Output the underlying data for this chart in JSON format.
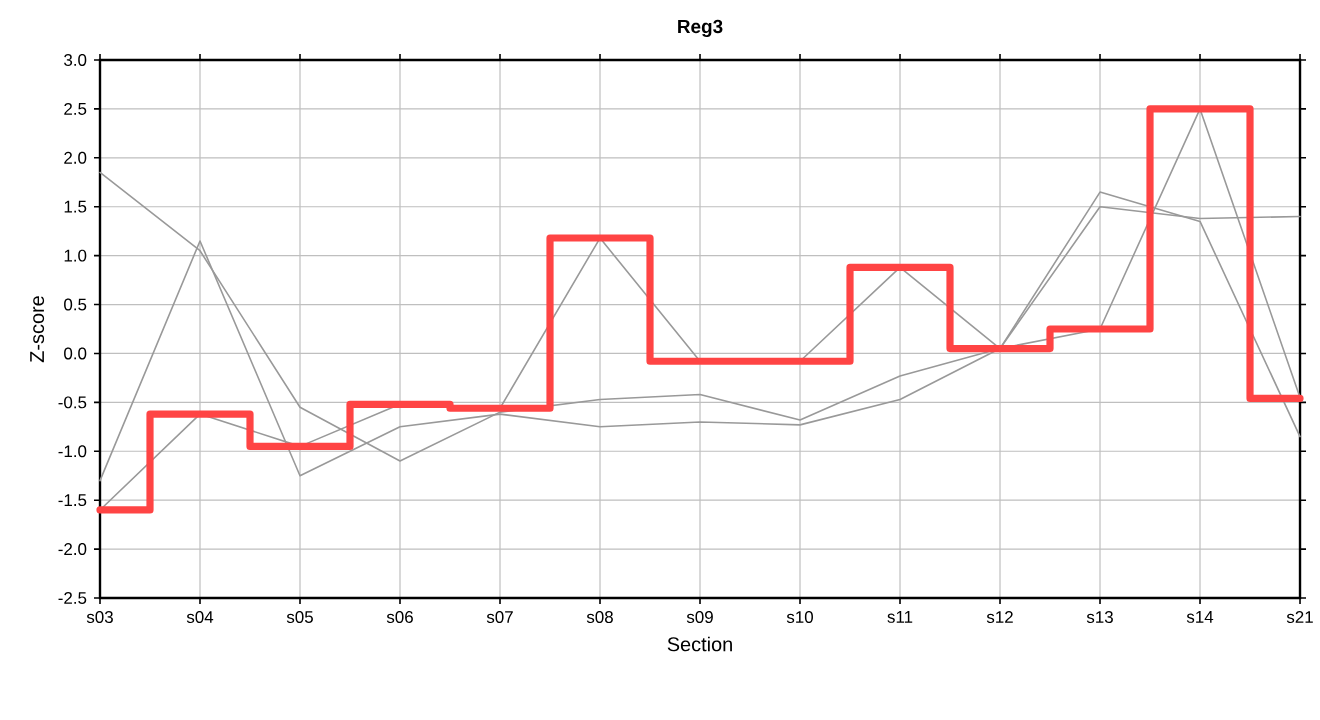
{
  "chart_data": {
    "type": "line",
    "title": "Reg3",
    "xlabel": "Section",
    "ylabel": "Z-score",
    "categories": [
      "s03",
      "s04",
      "s05",
      "s06",
      "s07",
      "s08",
      "s09",
      "s10",
      "s11",
      "s12",
      "s13",
      "s14",
      "s21"
    ],
    "ylim": [
      -2.5,
      3.0
    ],
    "yticks": [
      {
        "value": -2.5,
        "label": "-2.5"
      },
      {
        "value": -2,
        "label": "-2.0"
      },
      {
        "value": -1.5,
        "label": "-1.5"
      },
      {
        "value": -1,
        "label": "-1.0"
      },
      {
        "value": -0.5,
        "label": "-0.5"
      },
      {
        "value": 0,
        "label": "0.0"
      },
      {
        "value": 0.5,
        "label": "0.5"
      },
      {
        "value": 1,
        "label": "1.0"
      },
      {
        "value": 1.5,
        "label": "1.5"
      },
      {
        "value": 2,
        "label": "2.0"
      },
      {
        "value": 2.5,
        "label": "2.5"
      },
      {
        "value": 3,
        "label": "3.0"
      }
    ],
    "grid": true,
    "marker": "none",
    "line_style": "solid",
    "series": [
      {
        "color": "#999999",
        "values": [
          1.85,
          1.05,
          -0.55,
          -1.1,
          -0.6,
          -0.47,
          -0.42,
          -0.68,
          -0.23,
          0.05,
          1.65,
          1.35,
          -0.85
        ]
      },
      {
        "color": "#999999",
        "values": [
          -1.3,
          1.15,
          -1.25,
          -0.75,
          -0.62,
          -0.75,
          -0.7,
          -0.73,
          -0.47,
          0.05,
          1.5,
          1.38,
          1.4
        ]
      },
      {
        "color": "#999999",
        "values": [
          -1.6,
          -0.62,
          -0.95,
          -0.52,
          -0.56,
          1.18,
          -0.08,
          -0.08,
          0.88,
          0.05,
          0.25,
          2.5,
          -0.45
        ]
      },
      {
        "type": "step",
        "color": "#ff4444",
        "values": [
          -1.6,
          -0.62,
          -0.95,
          -0.52,
          -0.56,
          1.18,
          -0.08,
          -0.08,
          0.88,
          0.05,
          0.25,
          2.5,
          -0.46
        ]
      }
    ]
  }
}
